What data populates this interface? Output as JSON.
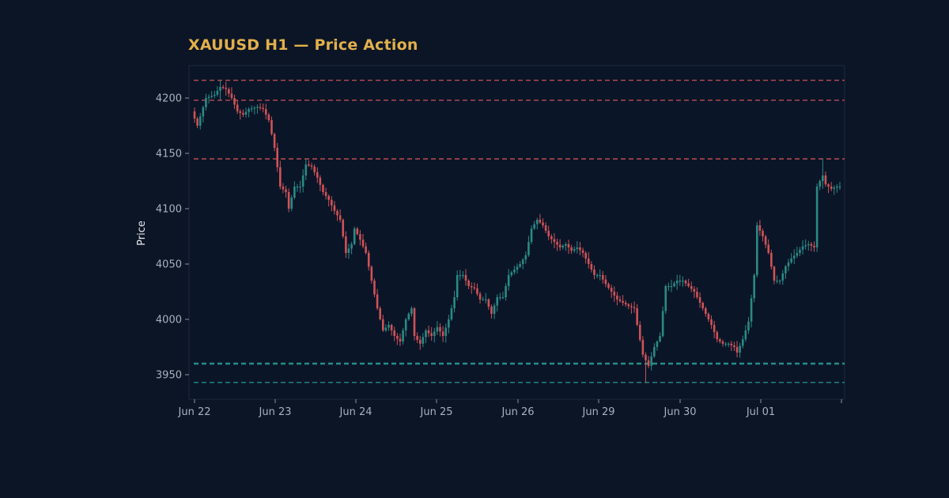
{
  "chart_data": {
    "type": "candlestick",
    "title": "XAUUSD H1 — Price Action",
    "xlabel": "",
    "ylabel": "Price",
    "x_tick_labels": [
      "Jun 22",
      "Jun 23",
      "Jun 24",
      "Jun 25",
      "Jun 26",
      "Jun 29",
      "Jun 30",
      "Jul 01"
    ],
    "y_ticks": [
      3950,
      4000,
      4050,
      4100,
      4150,
      4200
    ],
    "ylim": [
      3930,
      4230
    ],
    "grid": false,
    "resistance_levels": [
      4216,
      4198,
      4145
    ],
    "support_levels": [
      3960,
      3943
    ],
    "colors": {
      "background": "#0b1526",
      "plot_area": "#0a1528",
      "up": "#2a8a84",
      "down": "#cf5356",
      "resistance": "#cf5356",
      "support": "#2a9c92",
      "title": "#e2b04b"
    },
    "trend_path": [
      [
        0,
        4188
      ],
      [
        2,
        4175
      ],
      [
        5,
        4200
      ],
      [
        8,
        4203
      ],
      [
        10,
        4210
      ],
      [
        12,
        4208
      ],
      [
        14,
        4200
      ],
      [
        16,
        4188
      ],
      [
        18,
        4185
      ],
      [
        20,
        4190
      ],
      [
        23,
        4192
      ],
      [
        25,
        4190
      ],
      [
        27,
        4180
      ],
      [
        29,
        4155
      ],
      [
        31,
        4120
      ],
      [
        33,
        4115
      ],
      [
        34,
        4100
      ],
      [
        36,
        4120
      ],
      [
        38,
        4120
      ],
      [
        40,
        4140
      ],
      [
        42,
        4138
      ],
      [
        44,
        4128
      ],
      [
        46,
        4115
      ],
      [
        48,
        4108
      ],
      [
        50,
        4098
      ],
      [
        52,
        4090
      ],
      [
        54,
        4060
      ],
      [
        56,
        4068
      ],
      [
        57,
        4082
      ],
      [
        59,
        4072
      ],
      [
        61,
        4060
      ],
      [
        63,
        4035
      ],
      [
        65,
        4010
      ],
      [
        67,
        3990
      ],
      [
        69,
        3995
      ],
      [
        71,
        3985
      ],
      [
        73,
        3980
      ],
      [
        75,
        4000
      ],
      [
        77,
        4010
      ],
      [
        78,
        3985
      ],
      [
        80,
        3978
      ],
      [
        82,
        3990
      ],
      [
        84,
        3985
      ],
      [
        86,
        3993
      ],
      [
        88,
        3985
      ],
      [
        90,
        4000
      ],
      [
        92,
        4020
      ],
      [
        93,
        4040
      ],
      [
        95,
        4040
      ],
      [
        97,
        4030
      ],
      [
        99,
        4028
      ],
      [
        101,
        4018
      ],
      [
        103,
        4018
      ],
      [
        105,
        4005
      ],
      [
        107,
        4020
      ],
      [
        109,
        4020
      ],
      [
        111,
        4040
      ],
      [
        113,
        4045
      ],
      [
        115,
        4050
      ],
      [
        117,
        4058
      ],
      [
        119,
        4082
      ],
      [
        121,
        4090
      ],
      [
        123,
        4085
      ],
      [
        125,
        4075
      ],
      [
        127,
        4070
      ],
      [
        129,
        4065
      ],
      [
        131,
        4068
      ],
      [
        133,
        4062
      ],
      [
        135,
        4065
      ],
      [
        137,
        4060
      ],
      [
        139,
        4050
      ],
      [
        141,
        4040
      ],
      [
        143,
        4040
      ],
      [
        145,
        4032
      ],
      [
        147,
        4025
      ],
      [
        149,
        4018
      ],
      [
        151,
        4015
      ],
      [
        153,
        4012
      ],
      [
        155,
        4010
      ],
      [
        156,
        3995
      ],
      [
        158,
        3968
      ],
      [
        160,
        3958
      ],
      [
        162,
        3975
      ],
      [
        164,
        3985
      ],
      [
        166,
        4030
      ],
      [
        168,
        4030
      ],
      [
        170,
        4035
      ],
      [
        172,
        4035
      ],
      [
        174,
        4030
      ],
      [
        176,
        4025
      ],
      [
        178,
        4015
      ],
      [
        180,
        4005
      ],
      [
        182,
        3995
      ],
      [
        184,
        3982
      ],
      [
        186,
        3978
      ],
      [
        188,
        3978
      ],
      [
        190,
        3975
      ],
      [
        191,
        3970
      ],
      [
        193,
        3982
      ],
      [
        195,
        3998
      ],
      [
        197,
        4040
      ],
      [
        198,
        4085
      ],
      [
        200,
        4075
      ],
      [
        202,
        4060
      ],
      [
        204,
        4035
      ],
      [
        206,
        4035
      ],
      [
        208,
        4048
      ],
      [
        210,
        4055
      ],
      [
        212,
        4060
      ],
      [
        214,
        4066
      ],
      [
        216,
        4068
      ],
      [
        218,
        4065
      ],
      [
        219,
        4120
      ],
      [
        221,
        4130
      ],
      [
        222,
        4122
      ],
      [
        224,
        4118
      ],
      [
        226,
        4120
      ]
    ],
    "extreme_candles": [
      {
        "i": 9,
        "low": 4198,
        "high": 4216
      },
      {
        "i": 158,
        "low": 3943,
        "high": 3962
      },
      {
        "i": 220,
        "low": 4118,
        "high": 4145
      }
    ]
  },
  "header": {
    "title": "XAUUSD H1 — Price Action"
  }
}
